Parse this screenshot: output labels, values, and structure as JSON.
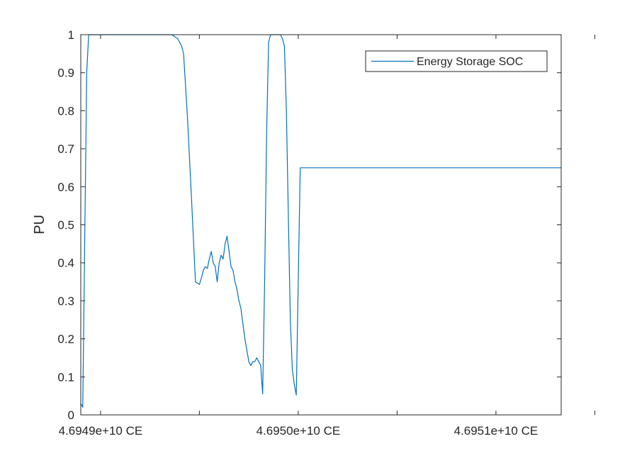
{
  "figure": {
    "background": "#ffffff",
    "axis_color": "#262626",
    "line_color": "#0072bd"
  },
  "chart_data": {
    "type": "line",
    "title": "",
    "xlabel": "",
    "ylabel": "PU",
    "xlim": [
      46948900000.0,
      46951330000.0
    ],
    "ylim": [
      0,
      1
    ],
    "xticks": [
      46949000000.0,
      46949500000.0,
      46950000000.0,
      46950500000.0,
      46951000000.0,
      46951500000.0
    ],
    "xtick_labels": [
      "4.6949e+10 CE",
      "",
      "4.6950e+10 CE",
      "",
      "4.6951e+10 CE",
      ""
    ],
    "yticks": [
      0,
      0.1,
      0.2,
      0.3,
      0.4,
      0.5,
      0.6,
      0.7,
      0.8,
      0.9,
      1
    ],
    "ytick_labels": [
      "0",
      "0.1",
      "0.2",
      "0.3",
      "0.4",
      "0.5",
      "0.6",
      "0.7",
      "0.8",
      "0.9",
      "1"
    ],
    "grid": false,
    "legend": {
      "position": "top-right",
      "entries": [
        "Energy Storage SOC"
      ]
    },
    "series": [
      {
        "name": "Energy Storage SOC",
        "color": "#0072bd",
        "x": [
          46948900000.0,
          46948910000.0,
          46948930000.0,
          46948940000.0,
          46948950000.0,
          46948960000.0,
          46949360000.0,
          46949390000.0,
          46949400000.0,
          46949410000.0,
          46949420000.0,
          46949440000.0,
          46949460000.0,
          46949480000.0,
          46949500000.0,
          46949510000.0,
          46949520000.0,
          46949530000.0,
          46949540000.0,
          46949550000.0,
          46949560000.0,
          46949570000.0,
          46949580000.0,
          46949590000.0,
          46949600000.0,
          46949610000.0,
          46949620000.0,
          46949630000.0,
          46949640000.0,
          46949650000.0,
          46949660000.0,
          46949670000.0,
          46949680000.0,
          46949690000.0,
          46949700000.0,
          46949710000.0,
          46949720000.0,
          46949730000.0,
          46949740000.0,
          46949750000.0,
          46949760000.0,
          46949770000.0,
          46949780000.0,
          46949790000.0,
          46949800000.0,
          46949810000.0,
          46949820000.0,
          46949830000.0,
          46949840000.0,
          46949850000.0,
          46949860000.0,
          46949870000.0,
          46949880000.0,
          46949890000.0,
          46949900000.0,
          46949910000.0,
          46949920000.0,
          46949930000.0,
          46949940000.0,
          46949950000.0,
          46949960000.0,
          46949970000.0,
          46949980000.0,
          46949990000.0,
          46950010000.0,
          46950020000.0,
          46950030000.0,
          46950040000.0,
          46950050000.0,
          46950060000.0,
          46950080000.0,
          46950090000.0,
          46950100000.0,
          46950110000.0,
          46950120000.0,
          46950130000.0,
          46950140000.0,
          46950150000.0,
          46950160000.0,
          46950170000.0,
          46950180000.0,
          46950190000.0,
          46950200000.0,
          46950210000.0,
          46950220000.0,
          46950230000.0,
          46950240000.0,
          46950250000.0,
          46950260000.0,
          46950270000.0,
          46950280000.0,
          46950290000.0,
          46950300000.0,
          46950310000.0,
          46950320000.0,
          46950330000.0,
          46950340000.0,
          46950350000.0,
          46950360000.0,
          46950370000.0,
          46950380000.0,
          46950390000.0,
          46950400000.0,
          46950410000.0,
          46951330000.0
        ],
        "y": [
          0.03,
          0.02,
          0.9,
          1.0,
          1.0,
          1.0,
          1.0,
          0.99,
          0.98,
          0.97,
          0.95,
          0.78,
          0.57,
          0.35,
          0.343,
          0.36,
          0.38,
          0.39,
          0.385,
          0.41,
          0.43,
          0.4,
          0.39,
          0.35,
          0.4,
          0.42,
          0.41,
          0.45,
          0.47,
          0.43,
          0.39,
          0.38,
          0.35,
          0.33,
          0.3,
          0.28,
          0.24,
          0.2,
          0.17,
          0.14,
          0.13,
          0.14,
          0.14,
          0.15,
          0.14,
          0.13,
          0.055,
          0.35,
          0.74,
          0.98,
          1.0,
          1.0,
          1.0,
          1.0,
          1.0,
          1.0,
          0.99,
          0.97,
          0.8,
          0.52,
          0.25,
          0.12,
          0.08,
          0.052,
          0.65,
          0.65,
          0.65,
          0.65,
          0.65,
          0.65,
          0.65,
          0.65,
          0.65,
          0.65,
          0.65,
          0.65,
          0.65,
          0.65,
          0.65,
          0.65,
          0.65,
          0.65,
          0.65,
          0.65,
          0.65,
          0.65,
          0.65,
          0.65,
          0.65,
          0.65,
          0.65,
          0.65,
          0.65,
          0.65,
          0.65,
          0.65,
          0.65,
          0.65,
          0.65,
          0.65,
          0.65,
          0.65,
          0.65,
          0.65,
          0.65
        ]
      }
    ]
  }
}
